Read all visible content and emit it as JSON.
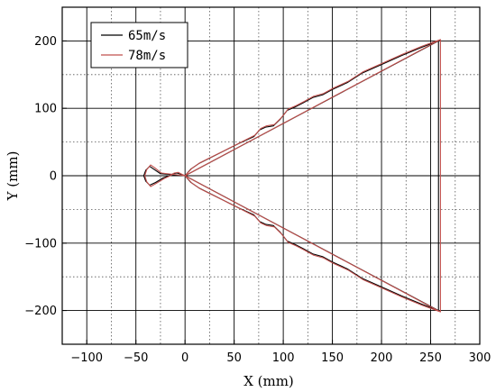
{
  "chart_data": {
    "type": "line",
    "title": "",
    "xlabel": "X (mm)",
    "ylabel": "Y (mm)",
    "xlim": [
      -125,
      300
    ],
    "ylim": [
      -250,
      250
    ],
    "x_ticks": [
      -100,
      -50,
      0,
      50,
      100,
      150,
      200,
      250,
      300
    ],
    "y_ticks": [
      -200,
      -100,
      0,
      100,
      200
    ],
    "x_minor_grid": [
      -125,
      -75,
      -25,
      25,
      75,
      125,
      175,
      225,
      275
    ],
    "y_minor_grid": [
      -150,
      -50,
      50,
      150
    ],
    "x_tick_labels": [
      "−100",
      "−50",
      "0",
      "50",
      "100",
      "150",
      "200",
      "250",
      "300"
    ],
    "y_tick_labels": [
      "−200",
      "−100",
      "0",
      "100",
      "200"
    ],
    "grid": true,
    "legend": "top-left",
    "series": [
      {
        "name": "65m/s",
        "color": "#000000",
        "points": [
          [
            0,
            0
          ],
          [
            258,
            200
          ],
          [
            258,
            -200
          ],
          [
            0,
            0
          ],
          [
            -25,
            3
          ],
          [
            -32,
            10
          ],
          [
            -36,
            14
          ],
          [
            -40,
            8
          ],
          [
            -42,
            0
          ],
          [
            -40,
            -8
          ],
          [
            -36,
            -14
          ],
          [
            -30,
            -10
          ],
          [
            -22,
            -3
          ],
          [
            -16,
            0
          ],
          [
            -12,
            3
          ],
          [
            -8,
            4
          ],
          [
            -4,
            2
          ],
          [
            0,
            0
          ],
          [
            6,
            10
          ],
          [
            14,
            18
          ],
          [
            25,
            26
          ],
          [
            40,
            37
          ],
          [
            55,
            48
          ],
          [
            70,
            58
          ],
          [
            76,
            68
          ],
          [
            82,
            72
          ],
          [
            90,
            74
          ],
          [
            97,
            84
          ],
          [
            104,
            97
          ],
          [
            112,
            102
          ],
          [
            120,
            108
          ],
          [
            130,
            116
          ],
          [
            140,
            120
          ],
          [
            150,
            128
          ],
          [
            165,
            138
          ],
          [
            180,
            152
          ],
          [
            200,
            165
          ],
          [
            220,
            178
          ],
          [
            240,
            190
          ],
          [
            258,
            200
          ],
          [
            258,
            -200
          ],
          [
            240,
            -190
          ],
          [
            220,
            -178
          ],
          [
            200,
            -165
          ],
          [
            180,
            -152
          ],
          [
            165,
            -138
          ],
          [
            150,
            -128
          ],
          [
            140,
            -120
          ],
          [
            130,
            -116
          ],
          [
            120,
            -108
          ],
          [
            112,
            -102
          ],
          [
            104,
            -97
          ],
          [
            97,
            -84
          ],
          [
            90,
            -74
          ],
          [
            82,
            -72
          ],
          [
            76,
            -68
          ],
          [
            70,
            -58
          ],
          [
            55,
            -48
          ],
          [
            40,
            -37
          ],
          [
            25,
            -26
          ],
          [
            14,
            -18
          ],
          [
            6,
            -10
          ],
          [
            0,
            0
          ]
        ]
      },
      {
        "name": "78m/s",
        "color": "#c0504d",
        "points": [
          [
            0,
            0
          ],
          [
            260,
            202
          ],
          [
            260,
            -202
          ],
          [
            0,
            0
          ],
          [
            -24,
            4
          ],
          [
            -31,
            12
          ],
          [
            -35,
            16
          ],
          [
            -39,
            9
          ],
          [
            -41,
            0
          ],
          [
            -39,
            -9
          ],
          [
            -35,
            -16
          ],
          [
            -29,
            -11
          ],
          [
            -21,
            -4
          ],
          [
            -15,
            0
          ],
          [
            -11,
            4
          ],
          [
            -7,
            5
          ],
          [
            -3,
            2
          ],
          [
            0,
            0
          ],
          [
            7,
            11
          ],
          [
            15,
            19
          ],
          [
            26,
            27
          ],
          [
            41,
            38
          ],
          [
            56,
            49
          ],
          [
            71,
            60
          ],
          [
            77,
            70
          ],
          [
            83,
            74
          ],
          [
            91,
            76
          ],
          [
            98,
            86
          ],
          [
            105,
            99
          ],
          [
            113,
            104
          ],
          [
            121,
            110
          ],
          [
            131,
            118
          ],
          [
            141,
            122
          ],
          [
            151,
            130
          ],
          [
            166,
            140
          ],
          [
            181,
            154
          ],
          [
            201,
            167
          ],
          [
            221,
            180
          ],
          [
            241,
            192
          ],
          [
            260,
            202
          ],
          [
            260,
            -202
          ],
          [
            241,
            -192
          ],
          [
            221,
            -180
          ],
          [
            201,
            -167
          ],
          [
            181,
            -154
          ],
          [
            166,
            -140
          ],
          [
            151,
            -130
          ],
          [
            141,
            -122
          ],
          [
            131,
            -118
          ],
          [
            121,
            -110
          ],
          [
            113,
            -104
          ],
          [
            105,
            -99
          ],
          [
            98,
            -86
          ],
          [
            91,
            -76
          ],
          [
            83,
            -74
          ],
          [
            77,
            -70
          ],
          [
            71,
            -60
          ],
          [
            56,
            -49
          ],
          [
            41,
            -38
          ],
          [
            26,
            -27
          ],
          [
            15,
            -19
          ],
          [
            7,
            -11
          ],
          [
            0,
            0
          ]
        ]
      }
    ]
  }
}
